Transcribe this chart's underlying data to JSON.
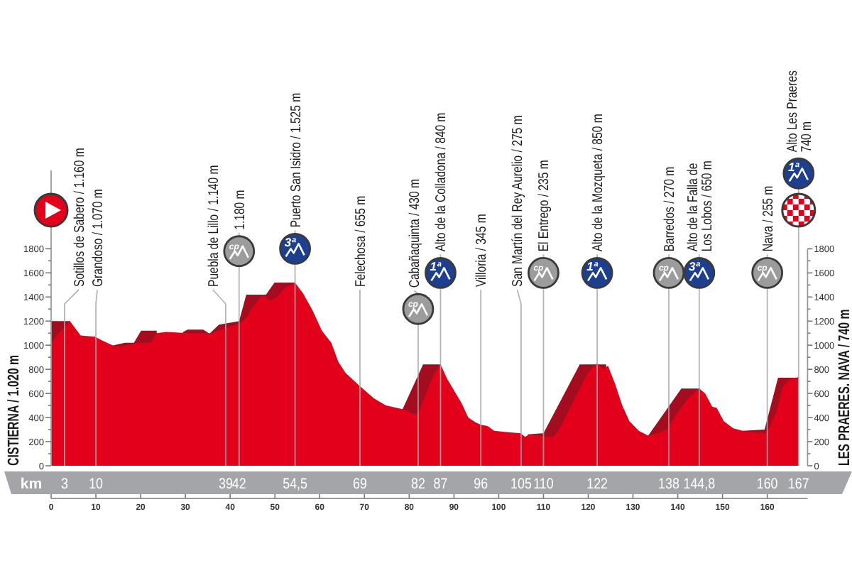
{
  "chart_data": {
    "type": "area",
    "x": [
      0,
      2,
      4.2,
      6.6,
      9.8,
      11.4,
      13.7,
      15.6,
      19.3,
      22.3,
      23.5,
      25.7,
      30.9,
      34.1,
      35.7,
      38.8,
      42,
      43.6,
      45.7,
      47.3,
      48.9,
      50.5,
      52,
      54.5,
      56.3,
      58.4,
      60.5,
      62.6,
      64.2,
      65.8,
      69,
      72.1,
      74.8,
      78.5,
      81.1,
      82,
      84,
      85.5,
      87,
      88.5,
      90.1,
      91.7,
      93.2,
      94.8,
      96,
      97.5,
      99,
      101.7,
      104.9,
      105.9,
      106.9,
      109.1,
      110,
      112.3,
      113.3,
      116.5,
      119.7,
      121.3,
      122,
      123.4,
      124.4,
      126,
      127.6,
      129.2,
      131.3,
      133.4,
      135.5,
      137.6,
      139.8,
      141.9,
      144,
      144.8,
      146.1,
      147.7,
      148.7,
      150.3,
      152.4,
      154.5,
      156.7,
      159.8,
      162,
      163.5,
      165.1,
      166.7,
      167
    ],
    "series": [
      {
        "color": "#a30d1f",
        "x": [
          0,
          4.2,
          4.3,
          14,
          16.5,
          18.5,
          20.1,
          23.6,
          23.7,
          29.5,
          30.5,
          34,
          35.2,
          35.3,
          35.5,
          37.5,
          40.5,
          42,
          43.6,
          47.3,
          48,
          49.9,
          54.5,
          54.6,
          78.4,
          83.1,
          87,
          87.1,
          106.5,
          110,
          118.1,
          124,
          124.1,
          133.4,
          140.8,
          145,
          145.1,
          154.5,
          159.4,
          162.4,
          167
        ],
        "values": [
          1200,
          1200,
          null,
          1000,
          1020,
          1020,
          1120,
          1120,
          null,
          1110,
          1130,
          1130,
          1100,
          null,
          1100,
          1170,
          1190,
          1200,
          1420,
          1420,
          1420,
          1520,
          1520,
          null,
          460,
          840,
          840,
          null,
          260,
          270,
          840,
          840,
          null,
          250,
          640,
          640,
          null,
          290,
          300,
          730,
          730
        ]
      },
      {
        "color": "#e2001a",
        "values": [
          1020,
          1110,
          1200,
          1080,
          1070,
          1040,
          1000,
          990,
          1020,
          1020,
          1100,
          1110,
          1100,
          1100,
          1100,
          1140,
          1180,
          1230,
          1350,
          1420,
          1370,
          1400,
          1470,
          1520,
          1430,
          1290,
          1120,
          1020,
          860,
          770,
          660,
          560,
          500,
          470,
          430,
          430,
          620,
          760,
          840,
          720,
          620,
          520,
          400,
          360,
          340,
          330,
          290,
          280,
          270,
          240,
          260,
          250,
          240,
          240,
          290,
          520,
          760,
          830,
          850,
          800,
          830,
          680,
          500,
          370,
          290,
          250,
          270,
          300,
          430,
          540,
          620,
          640,
          600,
          490,
          480,
          370,
          310,
          290,
          280,
          270,
          440,
          660,
          720,
          730,
          740
        ]
      }
    ],
    "xlim": [
      0,
      169
    ],
    "xticks": [
      0,
      10,
      20,
      30,
      40,
      50,
      60,
      70,
      80,
      90,
      100,
      110,
      120,
      130,
      140,
      150,
      160
    ],
    "ylim": [
      0,
      2450
    ],
    "yticks": [
      0,
      {
        "value": 100,
        "label": null
      },
      200,
      {
        "value": 300,
        "label": null
      },
      400,
      {
        "value": 500,
        "label": null
      },
      600,
      {
        "value": 700,
        "label": null
      },
      800,
      {
        "value": 900,
        "label": null
      },
      1000,
      {
        "value": 1100,
        "label": null
      },
      1200,
      {
        "value": 1300,
        "label": null
      },
      1400,
      {
        "value": 1500,
        "label": null
      },
      1600,
      {
        "value": 1700,
        "label": null
      },
      1800
    ],
    "y2lim": [
      0,
      1800
    ],
    "y2ticks": [
      0,
      {
        "value": 100,
        "label": null
      },
      200,
      {
        "value": 300,
        "label": null
      },
      400,
      {
        "value": 500,
        "label": null
      },
      600,
      {
        "value": 700,
        "label": null
      },
      800,
      {
        "value": 900,
        "label": null
      },
      1000,
      {
        "value": 1100,
        "label": null
      },
      1200,
      {
        "value": 1300,
        "label": null
      },
      1400,
      {
        "value": 1500,
        "label": null
      },
      1600,
      {
        "value": 1700,
        "label": null
      },
      1800
    ],
    "ylabel": "CISTIERNA / 1.020 m",
    "y2label": "LES PRAERES. NAVA / 740 m",
    "x2lim": [
      0,
      169
    ],
    "x2label": "km",
    "x2ticks": [
      3,
      10,
      39,
      42,
      {
        "value": 54.5,
        "label": "54,5"
      },
      69,
      82,
      87,
      96,
      105,
      110,
      122,
      138,
      {
        "value": 144.8,
        "label": "144,8"
      },
      160,
      167
    ],
    "ref_lines": [
      {
        "axis": "x",
        "value": 3,
        "label": "Sotillos de Sabero / 1.160 m",
        "color": "#a8a8a8"
      },
      {
        "axis": "x",
        "value": 10,
        "label": "Grandoso / 1.070 m",
        "color": "#a8a8a8"
      },
      {
        "axis": "x",
        "value": 39,
        "label": "Puebla de Lillo / 1.140 m",
        "color": "#a8a8a8"
      },
      {
        "axis": "x",
        "value": 42,
        "label": "1.180 m",
        "color": "#a8a8a8"
      },
      {
        "axis": "x",
        "value": 54.5,
        "label": "Puerto San Isidro / 1.525 m",
        "color": "#a8a8a8"
      },
      {
        "axis": "x",
        "value": 69,
        "label": "Felechosa / 655 m",
        "color": "#a8a8a8"
      },
      {
        "axis": "x",
        "value": 82,
        "label": "Cabañaquinta / 430 m",
        "color": "#a8a8a8"
      },
      {
        "axis": "x",
        "value": 87,
        "label": "Alto de la Colladona / 840 m",
        "color": "#a8a8a8"
      },
      {
        "axis": "x",
        "value": 96,
        "label": "Villoria / 345 m",
        "color": "#a8a8a8"
      },
      {
        "axis": "x",
        "value": 105,
        "label": "San Martín del Rey Aurelio / 275 m",
        "color": "#a8a8a8"
      },
      {
        "axis": "x",
        "value": 110,
        "label": "El Entrego / 235 m",
        "color": "#a8a8a8"
      },
      {
        "axis": "x",
        "value": 122,
        "label": "Alto de la Mozqueta / 850 m",
        "color": "#a8a8a8"
      },
      {
        "axis": "x",
        "value": 138,
        "label": "Barredos / 270 m",
        "color": "#a8a8a8"
      },
      {
        "axis": "x",
        "value": 144.8,
        "label": "Alto de la Falla de\nLos Lobos / 650 m",
        "color": "#a8a8a8"
      },
      {
        "axis": "x",
        "value": 160,
        "label": "Nava / 255 m",
        "color": "#a8a8a8"
      },
      {
        "axis": "x",
        "value": 167,
        "label": "Alto Les Praeres\n740 m",
        "color": "#a8a8a8"
      }
    ],
    "annotations": [
      {
        "text": "cp",
        "x": 42,
        "y": 1780
      },
      {
        "text": "3ª",
        "x": 54.5,
        "y": 1800
      },
      {
        "text": "cp",
        "x": 82,
        "y": 1300
      },
      {
        "text": "1ª",
        "x": 87,
        "y": 1600
      },
      {
        "text": "cp",
        "x": 110,
        "y": 1600
      },
      {
        "text": "1ª",
        "x": 122,
        "y": 1600
      },
      {
        "text": "cp",
        "x": 138,
        "y": 1600
      },
      {
        "text": "3ª",
        "x": 144.8,
        "y": 1600
      },
      {
        "text": "cp",
        "x": 160,
        "y": 1600
      },
      {
        "text": "1ª",
        "x": 167,
        "y": 2425
      }
    ]
  }
}
